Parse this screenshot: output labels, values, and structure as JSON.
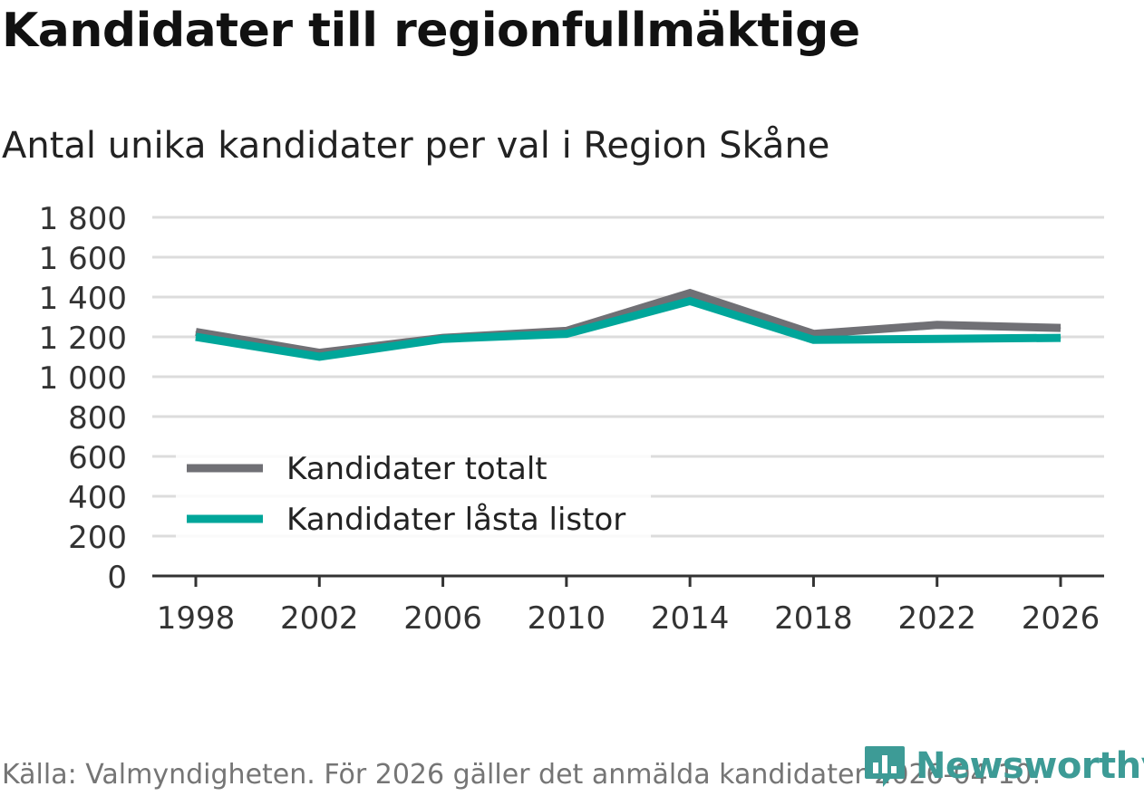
{
  "header": {
    "title": "Kandidater till regionfullmäktige",
    "subtitle": "Antal unika kandidater per val i Region Skåne"
  },
  "footer": {
    "source": "Källa: Valmyndigheten. För 2026 gäller det anmälda kandidater 2026-04-10."
  },
  "brand": {
    "name": "Newsworthy",
    "color": "#3d9b96"
  },
  "chart_data": {
    "type": "line",
    "title": "Kandidater till regionfullmäktige",
    "subtitle": "Antal unika kandidater per val i Region Skåne",
    "xlabel": "",
    "ylabel": "",
    "x": [
      1998,
      2002,
      2006,
      2010,
      2014,
      2018,
      2022,
      2026
    ],
    "x_tick_labels": [
      "1998",
      "2002",
      "2006",
      "2010",
      "2014",
      "2018",
      "2022",
      "2026"
    ],
    "ylim": [
      0,
      1800
    ],
    "y_ticks": [
      0,
      200,
      400,
      600,
      800,
      1000,
      1200,
      1400,
      1600,
      1800
    ],
    "y_tick_labels": [
      "0",
      "200",
      "400",
      "600",
      "800",
      "1 000",
      "1 200",
      "1 400",
      "1 600",
      "1 800"
    ],
    "grid": true,
    "legend_position": "bottom-left",
    "series": [
      {
        "name": "Kandidater totalt",
        "color": "#707075",
        "values": [
          1225,
          1120,
          1195,
          1230,
          1420,
          1215,
          1260,
          1245
        ]
      },
      {
        "name": "Kandidater låsta listor",
        "color": "#00a69a",
        "values": [
          1200,
          1100,
          1190,
          1215,
          1380,
          1185,
          1190,
          1195
        ]
      }
    ]
  }
}
